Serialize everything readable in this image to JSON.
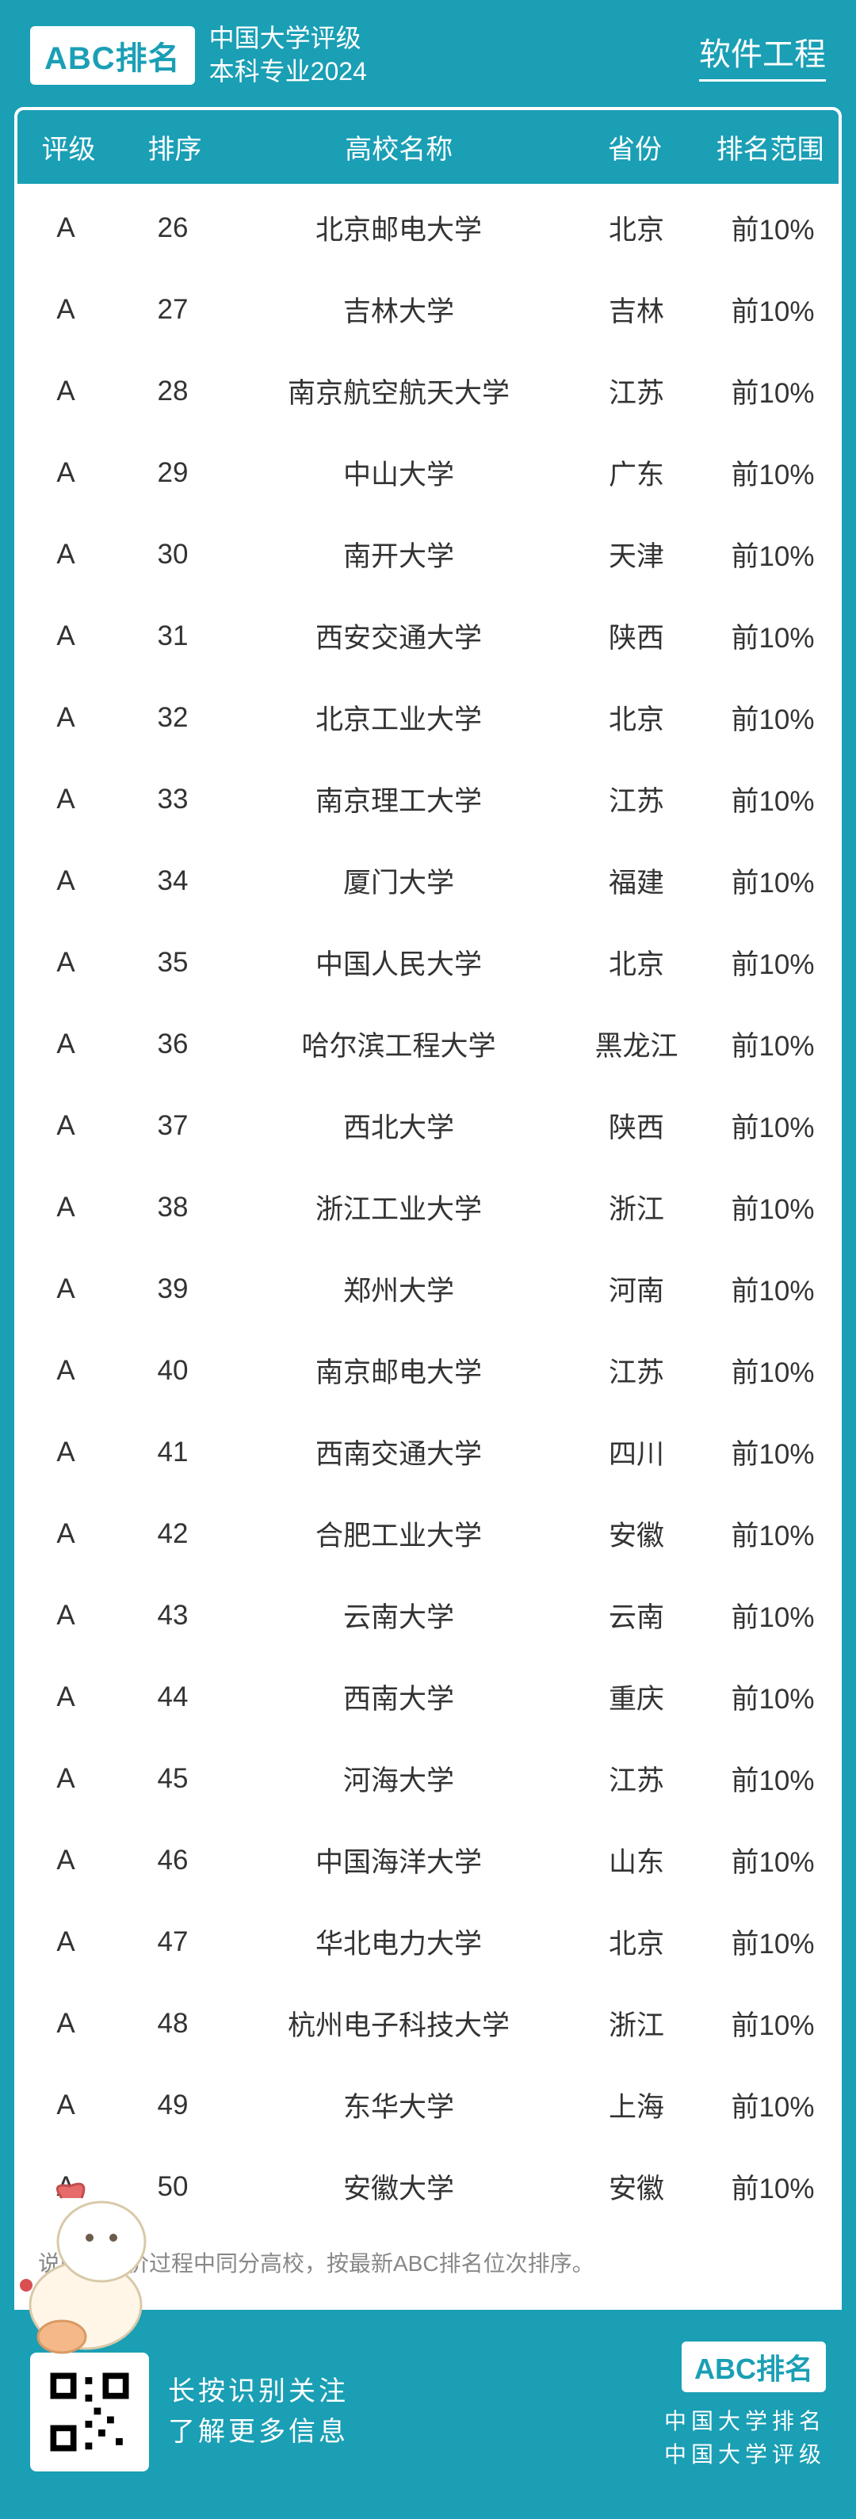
{
  "colors": {
    "primary": "#1a9fb5",
    "white": "#ffffff",
    "text": "#333333",
    "muted": "#888888"
  },
  "header": {
    "logo": "ABC排名",
    "subtitle_line1": "中国大学评级",
    "subtitle_line2": "本科专业2024",
    "major": "软件工程"
  },
  "table": {
    "columns": {
      "grade": "评级",
      "rank": "排序",
      "name": "高校名称",
      "province": "省份",
      "range": "排名范围"
    },
    "rows": [
      {
        "grade": "A",
        "rank": "26",
        "name": "北京邮电大学",
        "province": "北京",
        "range": "前10%"
      },
      {
        "grade": "A",
        "rank": "27",
        "name": "吉林大学",
        "province": "吉林",
        "range": "前10%"
      },
      {
        "grade": "A",
        "rank": "28",
        "name": "南京航空航天大学",
        "province": "江苏",
        "range": "前10%"
      },
      {
        "grade": "A",
        "rank": "29",
        "name": "中山大学",
        "province": "广东",
        "range": "前10%"
      },
      {
        "grade": "A",
        "rank": "30",
        "name": "南开大学",
        "province": "天津",
        "range": "前10%"
      },
      {
        "grade": "A",
        "rank": "31",
        "name": "西安交通大学",
        "province": "陕西",
        "range": "前10%"
      },
      {
        "grade": "A",
        "rank": "32",
        "name": "北京工业大学",
        "province": "北京",
        "range": "前10%"
      },
      {
        "grade": "A",
        "rank": "33",
        "name": "南京理工大学",
        "province": "江苏",
        "range": "前10%"
      },
      {
        "grade": "A",
        "rank": "34",
        "name": "厦门大学",
        "province": "福建",
        "range": "前10%"
      },
      {
        "grade": "A",
        "rank": "35",
        "name": "中国人民大学",
        "province": "北京",
        "range": "前10%"
      },
      {
        "grade": "A",
        "rank": "36",
        "name": "哈尔滨工程大学",
        "province": "黑龙江",
        "range": "前10%"
      },
      {
        "grade": "A",
        "rank": "37",
        "name": "西北大学",
        "province": "陕西",
        "range": "前10%"
      },
      {
        "grade": "A",
        "rank": "38",
        "name": "浙江工业大学",
        "province": "浙江",
        "range": "前10%"
      },
      {
        "grade": "A",
        "rank": "39",
        "name": "郑州大学",
        "province": "河南",
        "range": "前10%"
      },
      {
        "grade": "A",
        "rank": "40",
        "name": "南京邮电大学",
        "province": "江苏",
        "range": "前10%"
      },
      {
        "grade": "A",
        "rank": "41",
        "name": "西南交通大学",
        "province": "四川",
        "range": "前10%"
      },
      {
        "grade": "A",
        "rank": "42",
        "name": "合肥工业大学",
        "province": "安徽",
        "range": "前10%"
      },
      {
        "grade": "A",
        "rank": "43",
        "name": "云南大学",
        "province": "云南",
        "range": "前10%"
      },
      {
        "grade": "A",
        "rank": "44",
        "name": "西南大学",
        "province": "重庆",
        "range": "前10%"
      },
      {
        "grade": "A",
        "rank": "45",
        "name": "河海大学",
        "province": "江苏",
        "range": "前10%"
      },
      {
        "grade": "A",
        "rank": "46",
        "name": "中国海洋大学",
        "province": "山东",
        "range": "前10%"
      },
      {
        "grade": "A",
        "rank": "47",
        "name": "华北电力大学",
        "province": "北京",
        "range": "前10%"
      },
      {
        "grade": "A",
        "rank": "48",
        "name": "杭州电子科技大学",
        "province": "浙江",
        "range": "前10%"
      },
      {
        "grade": "A",
        "rank": "49",
        "name": "东华大学",
        "province": "上海",
        "range": "前10%"
      },
      {
        "grade": "A",
        "rank": "50",
        "name": "安徽大学",
        "province": "安徽",
        "range": "前10%"
      }
    ]
  },
  "note": "说明：评价过程中同分高校，按最新ABC排名位次排序。",
  "footer": {
    "qr_label": "QR",
    "left_line1": "长按识别关注",
    "left_line2": "了解更多信息",
    "logo": "ABC排名",
    "right_line1": "中国大学排名",
    "right_line2": "中国大学评级"
  }
}
